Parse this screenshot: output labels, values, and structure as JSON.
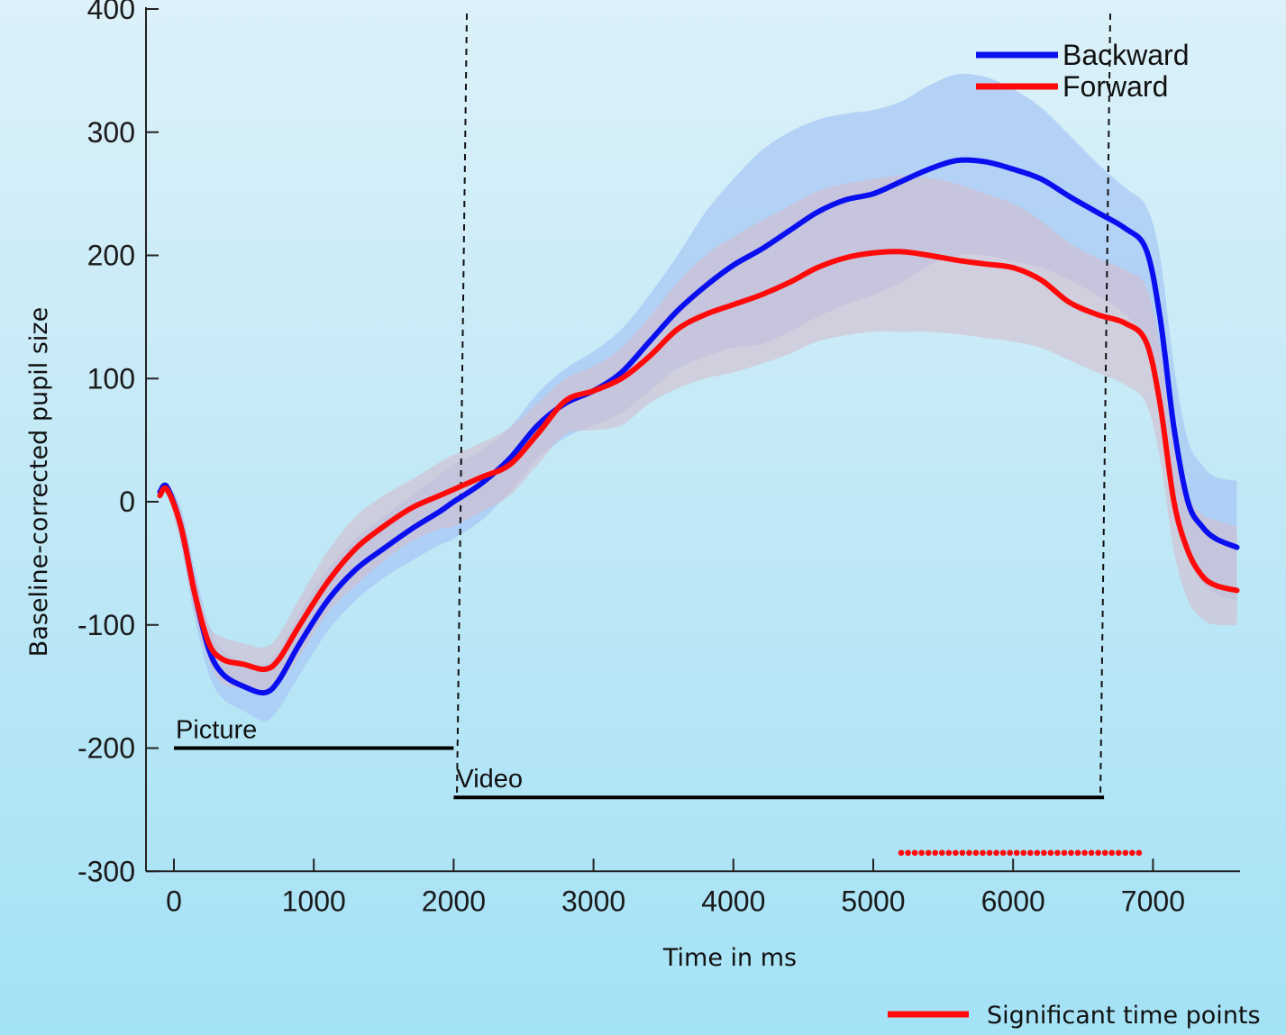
{
  "chart_data": {
    "type": "line",
    "xlabel": "Time in ms",
    "ylabel": "Baseline-corrected pupil size",
    "xlim": [
      -200,
      7600
    ],
    "ylim": [
      -300,
      400
    ],
    "x_ticks": [
      0,
      1000,
      2000,
      3000,
      4000,
      5000,
      6000,
      7000
    ],
    "y_ticks": [
      -300,
      -200,
      -100,
      0,
      100,
      200,
      300,
      400
    ],
    "grid": false,
    "legend_position": "top-right",
    "series": [
      {
        "name": "Backward",
        "color": "#0a0ff0",
        "band_color": "#a8c8f5",
        "x": [
          -100,
          -50,
          50,
          150,
          250,
          350,
          500,
          650,
          750,
          900,
          1100,
          1300,
          1500,
          1700,
          1900,
          2000,
          2200,
          2400,
          2600,
          2800,
          3000,
          3200,
          3400,
          3600,
          3800,
          4000,
          4200,
          4400,
          4600,
          4800,
          5000,
          5200,
          5400,
          5600,
          5800,
          6000,
          6200,
          6400,
          6600,
          6800,
          6950,
          7050,
          7150,
          7250,
          7350,
          7450,
          7600
        ],
        "y": [
          8,
          12,
          -20,
          -75,
          -120,
          -140,
          -150,
          -155,
          -145,
          -115,
          -80,
          -55,
          -38,
          -22,
          -8,
          0,
          15,
          35,
          62,
          80,
          90,
          105,
          130,
          155,
          175,
          192,
          205,
          220,
          235,
          245,
          250,
          260,
          270,
          277,
          276,
          270,
          262,
          248,
          235,
          222,
          205,
          150,
          60,
          0,
          -20,
          -30,
          -37
        ],
        "upper": [
          10,
          15,
          -5,
          -55,
          -100,
          -120,
          -130,
          -132,
          -120,
          -90,
          -55,
          -30,
          -12,
          5,
          22,
          30,
          42,
          60,
          88,
          108,
          122,
          140,
          168,
          200,
          235,
          262,
          285,
          300,
          310,
          315,
          318,
          325,
          338,
          347,
          345,
          335,
          320,
          298,
          275,
          255,
          240,
          200,
          110,
          50,
          30,
          20,
          17
        ],
        "lower": [
          5,
          8,
          -35,
          -95,
          -140,
          -160,
          -170,
          -178,
          -168,
          -140,
          -105,
          -80,
          -62,
          -48,
          -35,
          -30,
          -15,
          8,
          35,
          52,
          62,
          72,
          90,
          108,
          118,
          125,
          128,
          138,
          150,
          160,
          168,
          178,
          192,
          200,
          200,
          195,
          190,
          180,
          168,
          152,
          130,
          80,
          0,
          -45,
          -65,
          -75,
          -80
        ]
      },
      {
        "name": "Forward",
        "color": "#ff0a0a",
        "band_color": "#d3bccd",
        "x": [
          -100,
          -50,
          50,
          150,
          250,
          350,
          500,
          650,
          750,
          900,
          1100,
          1300,
          1500,
          1700,
          1900,
          2000,
          2200,
          2400,
          2600,
          2800,
          3000,
          3200,
          3400,
          3600,
          3800,
          4000,
          4200,
          4400,
          4600,
          4800,
          5000,
          5200,
          5400,
          5600,
          5800,
          6000,
          6200,
          6400,
          6600,
          6800,
          6950,
          7050,
          7150,
          7250,
          7350,
          7450,
          7600
        ],
        "y": [
          5,
          10,
          -20,
          -75,
          -115,
          -128,
          -132,
          -136,
          -128,
          -100,
          -65,
          -38,
          -20,
          -5,
          5,
          10,
          20,
          30,
          55,
          82,
          90,
          100,
          118,
          140,
          152,
          160,
          168,
          178,
          190,
          198,
          202,
          203,
          200,
          196,
          193,
          190,
          180,
          162,
          152,
          145,
          130,
          80,
          0,
          -40,
          -60,
          -68,
          -72
        ],
        "upper": [
          8,
          12,
          -8,
          -60,
          -100,
          -110,
          -115,
          -118,
          -108,
          -78,
          -40,
          -12,
          5,
          18,
          32,
          38,
          48,
          60,
          80,
          100,
          110,
          125,
          150,
          178,
          200,
          215,
          228,
          240,
          252,
          258,
          262,
          265,
          263,
          258,
          250,
          242,
          228,
          210,
          198,
          188,
          175,
          125,
          45,
          5,
          -10,
          -15,
          -20
        ],
        "lower": [
          2,
          5,
          -35,
          -92,
          -130,
          -148,
          -152,
          -155,
          -148,
          -125,
          -90,
          -68,
          -48,
          -32,
          -22,
          -20,
          -8,
          5,
          30,
          55,
          58,
          62,
          80,
          92,
          100,
          105,
          112,
          120,
          130,
          135,
          138,
          138,
          138,
          136,
          133,
          130,
          125,
          115,
          105,
          95,
          80,
          35,
          -40,
          -80,
          -95,
          -100,
          -100
        ]
      }
    ],
    "vertical_markers": [
      2000,
      6650
    ],
    "phase_labels": [
      "Picture",
      "Video"
    ],
    "phases": [
      {
        "label": "Picture",
        "start": 0,
        "end": 2000,
        "y": -200
      },
      {
        "label": "Video",
        "start": 2000,
        "end": 6650,
        "y": -240
      }
    ],
    "significant": {
      "label": "Significant time points",
      "color": "#ff0a0a",
      "start": 5200,
      "end": 6900,
      "y": -285,
      "count": 36
    }
  }
}
